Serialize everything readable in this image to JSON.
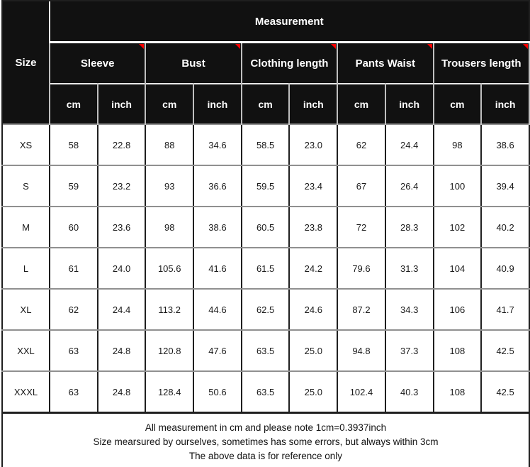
{
  "colors": {
    "header_bg": "#111111",
    "header_text": "#ffffff",
    "comment_marker_red": "#ff0000",
    "body_horizontal_grid": "#909090",
    "body_vertical_grid": "#1f1f1f"
  },
  "table": {
    "title": "Measurement",
    "size_header": "Size",
    "groups": [
      {
        "label": "Sleeve"
      },
      {
        "label": "Bust"
      },
      {
        "label": "Clothing length"
      },
      {
        "label": "Pants Waist"
      },
      {
        "label": "Trousers length"
      }
    ],
    "unit_headers": [
      "cm",
      "inch"
    ],
    "rows": [
      {
        "size": "XS",
        "values": [
          "58",
          "22.8",
          "88",
          "34.6",
          "58.5",
          "23.0",
          "62",
          "24.4",
          "98",
          "38.6"
        ]
      },
      {
        "size": "S",
        "values": [
          "59",
          "23.2",
          "93",
          "36.6",
          "59.5",
          "23.4",
          "67",
          "26.4",
          "100",
          "39.4"
        ]
      },
      {
        "size": "M",
        "values": [
          "60",
          "23.6",
          "98",
          "38.6",
          "60.5",
          "23.8",
          "72",
          "28.3",
          "102",
          "40.2"
        ]
      },
      {
        "size": "L",
        "values": [
          "61",
          "24.0",
          "105.6",
          "41.6",
          "61.5",
          "24.2",
          "79.6",
          "31.3",
          "104",
          "40.9"
        ]
      },
      {
        "size": "XL",
        "values": [
          "62",
          "24.4",
          "113.2",
          "44.6",
          "62.5",
          "24.6",
          "87.2",
          "34.3",
          "106",
          "41.7"
        ]
      },
      {
        "size": "XXL",
        "values": [
          "63",
          "24.8",
          "120.8",
          "47.6",
          "63.5",
          "25.0",
          "94.8",
          "37.3",
          "108",
          "42.5"
        ]
      },
      {
        "size": "XXXL",
        "values": [
          "63",
          "24.8",
          "128.4",
          "50.6",
          "63.5",
          "25.0",
          "102.4",
          "40.3",
          "108",
          "42.5"
        ]
      }
    ],
    "footer_lines": [
      "All measurement in cm and please note 1cm=0.3937inch",
      "Size mearsured by ourselves, sometimes has some errors, but always within 3cm",
      "The above data is for reference only"
    ]
  }
}
